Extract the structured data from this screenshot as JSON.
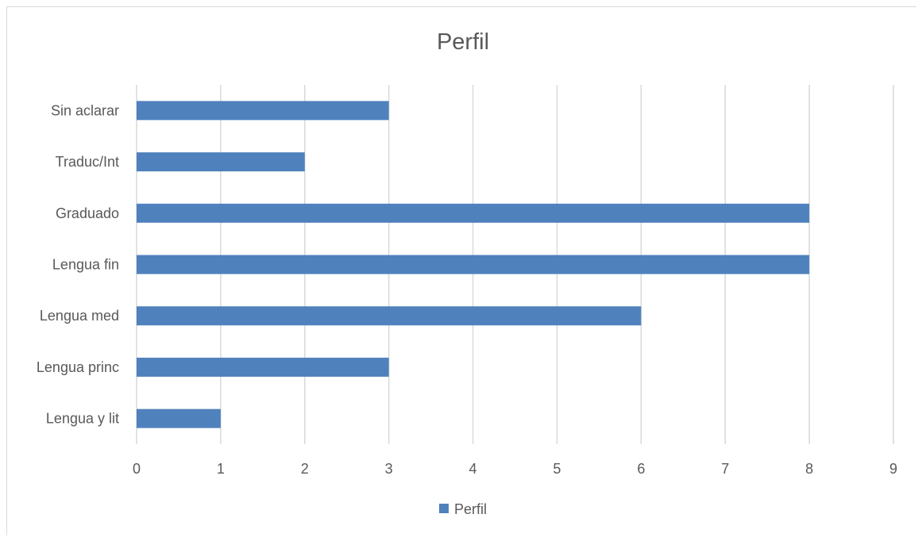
{
  "chart_data": {
    "type": "bar",
    "orientation": "horizontal",
    "title": "Perfil",
    "categories": [
      "Sin aclarar",
      "Traduc/Int",
      "Graduado",
      "Lengua fin",
      "Lengua med",
      "Lengua princ",
      "Lengua y lit"
    ],
    "series": [
      {
        "name": "Perfil",
        "color": "#4f81bd",
        "values": [
          3,
          2,
          8,
          8,
          6,
          3,
          1
        ]
      }
    ],
    "xlim": [
      0,
      9
    ],
    "x_ticks": [
      "0",
      "1",
      "2",
      "3",
      "4",
      "5",
      "6",
      "7",
      "8",
      "9"
    ],
    "grid": true,
    "legend_position": "bottom"
  }
}
